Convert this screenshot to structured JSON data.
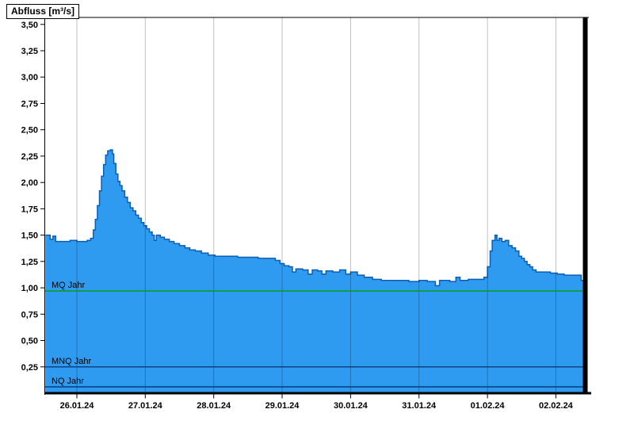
{
  "title": "Abfluss [m³/s]",
  "chart_data": {
    "type": "area",
    "title": "Abfluss [m³/s]",
    "ylabel": "Abfluss [m³/s]",
    "x_unit": "date",
    "x_range_days": [
      -0.4633,
      7.447
    ],
    "ylim": [
      0,
      3.566
    ],
    "grid": "vertical-only",
    "legend": "none",
    "x_ticks": [
      {
        "t": 0,
        "label": "26.01.24"
      },
      {
        "t": 1,
        "label": "27.01.24"
      },
      {
        "t": 2,
        "label": "28.01.24"
      },
      {
        "t": 3,
        "label": "29.01.24"
      },
      {
        "t": 4,
        "label": "30.01.24"
      },
      {
        "t": 5,
        "label": "31.01.24"
      },
      {
        "t": 6,
        "label": "01.02.24"
      },
      {
        "t": 7,
        "label": "02.02.24"
      }
    ],
    "y_ticks": [
      {
        "v": 0.25,
        "label": "0,25"
      },
      {
        "v": 0.5,
        "label": "0,50"
      },
      {
        "v": 0.75,
        "label": "0,75"
      },
      {
        "v": 1.0,
        "label": "1,00"
      },
      {
        "v": 1.25,
        "label": "1,25"
      },
      {
        "v": 1.5,
        "label": "1,50"
      },
      {
        "v": 1.75,
        "label": "1,75"
      },
      {
        "v": 2.0,
        "label": "2,00"
      },
      {
        "v": 2.25,
        "label": "2,25"
      },
      {
        "v": 2.5,
        "label": "2,50"
      },
      {
        "v": 2.75,
        "label": "2,75"
      },
      {
        "v": 3.0,
        "label": "3,00"
      },
      {
        "v": 3.25,
        "label": "3,25"
      },
      {
        "v": 3.5,
        "label": "3,50"
      }
    ],
    "reference_lines": [
      {
        "name": "mq-jahr",
        "label": "MQ Jahr",
        "value": 0.97,
        "color": "#00A000"
      },
      {
        "name": "mnq-jahr",
        "label": "MNQ Jahr",
        "value": 0.25,
        "color": "#0A3C78"
      },
      {
        "name": "nq-jahr",
        "label": "NQ Jahr",
        "value": 0.06,
        "color": "#0A3C78"
      }
    ],
    "colors": {
      "area_fill": "#2E9AF0",
      "area_outline": "#0A5FB4",
      "grid_line": "rgba(0,0,0,0.25)",
      "axis": "#000000",
      "text": "#000000"
    },
    "series": [
      {
        "name": "Abfluss",
        "unit": "m³/s",
        "peak": 2.31,
        "points": [
          [
            -0.46,
            1.5
          ],
          [
            -0.41,
            1.5
          ],
          [
            -0.39,
            1.46
          ],
          [
            -0.35,
            1.49
          ],
          [
            -0.31,
            1.44
          ],
          [
            -0.2,
            1.44
          ],
          [
            -0.1,
            1.45
          ],
          [
            0.0,
            1.44
          ],
          [
            0.08,
            1.44
          ],
          [
            0.15,
            1.45
          ],
          [
            0.2,
            1.47
          ],
          [
            0.24,
            1.55
          ],
          [
            0.27,
            1.65
          ],
          [
            0.3,
            1.78
          ],
          [
            0.33,
            1.92
          ],
          [
            0.36,
            2.06
          ],
          [
            0.39,
            2.17
          ],
          [
            0.42,
            2.26
          ],
          [
            0.45,
            2.3
          ],
          [
            0.49,
            2.31
          ],
          [
            0.52,
            2.27
          ],
          [
            0.54,
            2.18
          ],
          [
            0.57,
            2.08
          ],
          [
            0.6,
            2.01
          ],
          [
            0.63,
            1.97
          ],
          [
            0.66,
            1.92
          ],
          [
            0.7,
            1.86
          ],
          [
            0.74,
            1.81
          ],
          [
            0.78,
            1.76
          ],
          [
            0.82,
            1.73
          ],
          [
            0.86,
            1.69
          ],
          [
            0.9,
            1.66
          ],
          [
            0.94,
            1.62
          ],
          [
            0.98,
            1.59
          ],
          [
            1.02,
            1.56
          ],
          [
            1.06,
            1.53
          ],
          [
            1.1,
            1.5
          ],
          [
            1.13,
            1.45
          ],
          [
            1.16,
            1.5
          ],
          [
            1.22,
            1.48
          ],
          [
            1.28,
            1.46
          ],
          [
            1.35,
            1.44
          ],
          [
            1.42,
            1.42
          ],
          [
            1.5,
            1.4
          ],
          [
            1.58,
            1.38
          ],
          [
            1.65,
            1.36
          ],
          [
            1.73,
            1.35
          ],
          [
            1.82,
            1.33
          ],
          [
            1.92,
            1.31
          ],
          [
            2.02,
            1.3
          ],
          [
            2.2,
            1.3
          ],
          [
            2.35,
            1.29
          ],
          [
            2.5,
            1.29
          ],
          [
            2.65,
            1.28
          ],
          [
            2.8,
            1.28
          ],
          [
            2.9,
            1.26
          ],
          [
            2.97,
            1.23
          ],
          [
            3.03,
            1.21
          ],
          [
            3.1,
            1.2
          ],
          [
            3.15,
            1.15
          ],
          [
            3.2,
            1.18
          ],
          [
            3.3,
            1.17
          ],
          [
            3.38,
            1.13
          ],
          [
            3.44,
            1.17
          ],
          [
            3.52,
            1.16
          ],
          [
            3.58,
            1.13
          ],
          [
            3.64,
            1.16
          ],
          [
            3.74,
            1.15
          ],
          [
            3.84,
            1.17
          ],
          [
            3.93,
            1.13
          ],
          [
            4.0,
            1.15
          ],
          [
            4.1,
            1.12
          ],
          [
            4.2,
            1.1
          ],
          [
            4.32,
            1.08
          ],
          [
            4.45,
            1.07
          ],
          [
            4.65,
            1.07
          ],
          [
            4.85,
            1.06
          ],
          [
            5.0,
            1.07
          ],
          [
            5.12,
            1.06
          ],
          [
            5.24,
            1.02
          ],
          [
            5.3,
            1.07
          ],
          [
            5.45,
            1.06
          ],
          [
            5.54,
            1.1
          ],
          [
            5.6,
            1.07
          ],
          [
            5.72,
            1.08
          ],
          [
            5.88,
            1.08
          ],
          [
            5.95,
            1.1
          ],
          [
            6.0,
            1.2
          ],
          [
            6.04,
            1.35
          ],
          [
            6.07,
            1.45
          ],
          [
            6.11,
            1.5
          ],
          [
            6.14,
            1.45
          ],
          [
            6.17,
            1.47
          ],
          [
            6.21,
            1.44
          ],
          [
            6.26,
            1.45
          ],
          [
            6.31,
            1.4
          ],
          [
            6.36,
            1.38
          ],
          [
            6.41,
            1.35
          ],
          [
            6.46,
            1.3
          ],
          [
            6.5,
            1.28
          ],
          [
            6.54,
            1.25
          ],
          [
            6.58,
            1.22
          ],
          [
            6.62,
            1.2
          ],
          [
            6.66,
            1.17
          ],
          [
            6.71,
            1.15
          ],
          [
            6.82,
            1.15
          ],
          [
            6.92,
            1.14
          ],
          [
            7.02,
            1.13
          ],
          [
            7.12,
            1.12
          ],
          [
            7.25,
            1.12
          ],
          [
            7.33,
            1.12
          ],
          [
            7.37,
            1.07
          ],
          [
            7.41,
            1.12
          ],
          [
            7.447,
            1.12
          ]
        ]
      }
    ]
  }
}
